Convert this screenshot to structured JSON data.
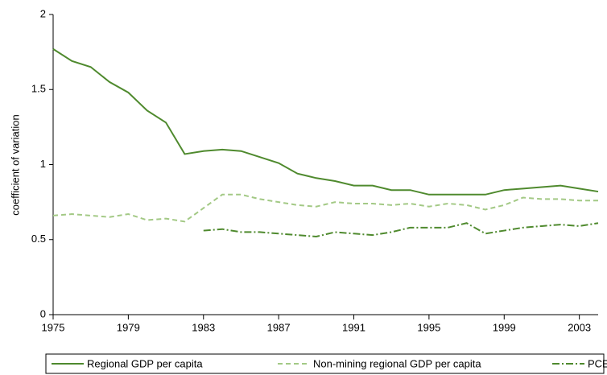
{
  "chart_data": {
    "type": "line",
    "y_label": "coefficient of variation",
    "x": [
      1975,
      1976,
      1977,
      1978,
      1979,
      1980,
      1981,
      1982,
      1983,
      1984,
      1985,
      1986,
      1987,
      1988,
      1989,
      1990,
      1991,
      1992,
      1993,
      1994,
      1995,
      1996,
      1997,
      1998,
      1999,
      2000,
      2001,
      2002,
      2003,
      2004
    ],
    "xlim": [
      1975,
      2004
    ],
    "xticks": [
      1975,
      1979,
      1983,
      1987,
      1991,
      1995,
      1999,
      2003
    ],
    "ylim": [
      0,
      2
    ],
    "yticks": [
      0,
      0.5,
      1,
      1.5,
      2
    ],
    "series": [
      {
        "name": "Regional GDP per capita",
        "color": "#4f8a2e",
        "dash": "solid",
        "values": [
          1.77,
          1.69,
          1.65,
          1.55,
          1.48,
          1.36,
          1.28,
          1.07,
          1.09,
          1.1,
          1.09,
          1.05,
          1.01,
          0.94,
          0.91,
          0.89,
          0.86,
          0.86,
          0.83,
          0.83,
          0.8,
          0.8,
          0.8,
          0.8,
          0.83,
          0.84,
          0.85,
          0.86,
          0.84,
          0.82
        ]
      },
      {
        "name": "Non-mining regional GDP per capita",
        "color": "#a3c985",
        "dash": "dashed",
        "values": [
          0.66,
          0.67,
          0.66,
          0.65,
          0.67,
          0.63,
          0.64,
          0.62,
          0.71,
          0.8,
          0.8,
          0.77,
          0.75,
          0.73,
          0.72,
          0.75,
          0.74,
          0.74,
          0.73,
          0.74,
          0.72,
          0.74,
          0.73,
          0.7,
          0.73,
          0.78,
          0.77,
          0.77,
          0.76,
          0.76
        ]
      },
      {
        "name": "PCE",
        "color": "#4f8a2e",
        "dash": "dashdot",
        "values": [
          null,
          null,
          null,
          null,
          null,
          null,
          null,
          null,
          0.56,
          0.57,
          0.55,
          0.55,
          0.54,
          0.53,
          0.52,
          0.55,
          0.54,
          0.53,
          0.55,
          0.58,
          0.58,
          0.58,
          0.61,
          0.54,
          0.56,
          0.58,
          0.59,
          0.6,
          0.59,
          0.61
        ]
      }
    ]
  }
}
